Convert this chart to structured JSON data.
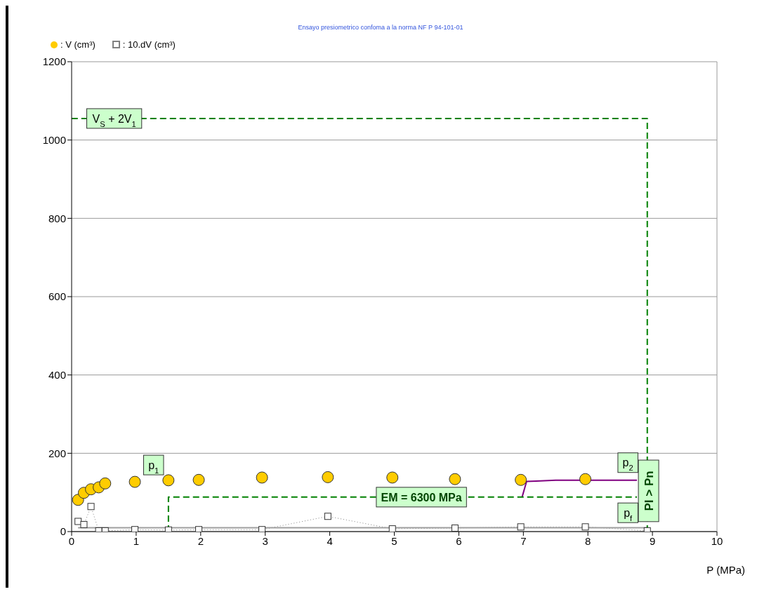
{
  "chart_data": {
    "type": "scatter",
    "title": "Ensayo presiometrico confoma a la norma NF P 94-101-01",
    "xlabel": "P (MPa)",
    "xlim": [
      0,
      10
    ],
    "xticks": [
      0,
      1,
      2,
      3,
      4,
      5,
      6,
      7,
      8,
      9,
      10
    ],
    "ylim": [
      0,
      1200
    ],
    "yticks": [
      0,
      200,
      400,
      600,
      800,
      1000,
      1200
    ],
    "grid": "y",
    "legend": "top left",
    "series": [
      {
        "name": ": V (cm³)",
        "marker": "circle",
        "color": "#ffcc00",
        "x": [
          0.1,
          0.19,
          0.3,
          0.42,
          0.52,
          0.98,
          1.5,
          1.97,
          2.95,
          3.97,
          4.97,
          5.94,
          6.96,
          7.96
        ],
        "values": [
          81,
          99,
          108,
          113,
          123,
          127,
          131,
          132,
          138,
          139,
          138,
          134,
          132,
          134
        ]
      },
      {
        "name": ": 10.dV (cm³)",
        "type": "line",
        "marker": "square",
        "line_style": "dotted",
        "color": "#808080",
        "x": [
          0.1,
          0.19,
          0.3,
          0.42,
          0.52,
          0.98,
          1.5,
          1.97,
          2.95,
          3.97,
          4.97,
          5.94,
          6.96,
          7.96,
          8.92
        ],
        "values": [
          26,
          18,
          64,
          2,
          2,
          5,
          4,
          5,
          5,
          39,
          7,
          9,
          12,
          12,
          2
        ]
      },
      {
        "type": "line",
        "marker": "none",
        "line_style": "solid",
        "color": "#a0a0a0",
        "x": [
          0.1,
          8.92
        ],
        "values": [
          10,
          10
        ]
      },
      {
        "type": "line",
        "marker": "none",
        "line_style": "solid",
        "color": "#800080",
        "x": [
          6.98,
          7.05,
          7.2,
          7.5,
          8.76
        ],
        "values": [
          88,
          128,
          129,
          131,
          131
        ]
      },
      {
        "type": "line",
        "marker": "none",
        "line_style": "dashed",
        "color": "#008000",
        "x": [
          1.5,
          1.5,
          8.76
        ],
        "values": [
          0,
          88,
          88
        ]
      },
      {
        "type": "line",
        "marker": "none",
        "line_style": "dashed",
        "color": "#008000",
        "x": [
          8.92,
          8.92,
          0
        ],
        "values": [
          0,
          1055,
          1055
        ]
      }
    ],
    "annotations": [
      {
        "text": "V$_{S}$ + 2V$_{1}$",
        "x": 0.66,
        "y": 1055
      },
      {
        "text": "p$_{1}$",
        "x": 1.27,
        "y": 170
      },
      {
        "text": "p$_{2}$",
        "x": 8.62,
        "y": 176
      },
      {
        "text": "p$_{f}$",
        "x": 8.62,
        "y": 48
      },
      {
        "text": "EM = 6300 MPa",
        "x": 5.42,
        "y": 88
      },
      {
        "text": "PI > Pn",
        "x": 8.94,
        "y": 104
      }
    ]
  }
}
